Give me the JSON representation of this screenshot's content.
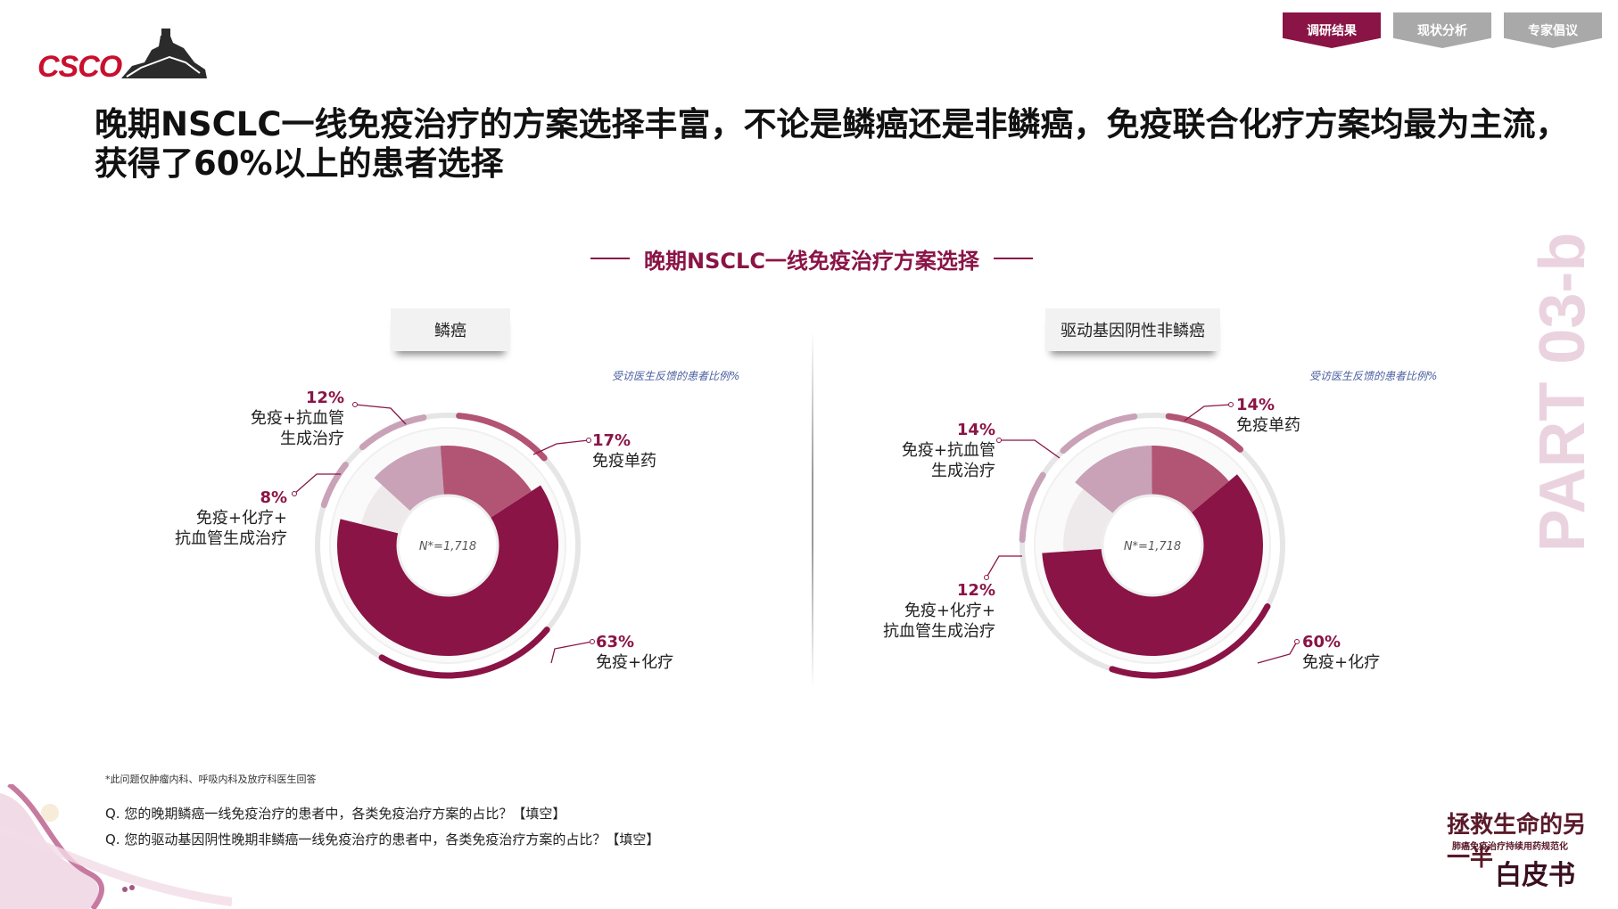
{
  "logo": {
    "text": "CSCO"
  },
  "tabs": [
    {
      "label": "调研结果",
      "active": true
    },
    {
      "label": "现状分析",
      "active": false
    },
    {
      "label": "专家倡议",
      "active": false
    }
  ],
  "title": "晚期NSCLC一线免疫治疗的方案选择丰富，不论是鳞癌还是非鳞癌，免疫联合化疗方案均最为主流，获得了60%以上的患者选择",
  "chart_section_title": "晚期NSCLC一线免疫治疗方案选择",
  "note": "受访医生反馈的患者比例%",
  "part_label": "PART 03-b",
  "colors": {
    "accent": "#8a1446",
    "seg2": "#b25473",
    "seg3": "#c9a2b8",
    "seg4": "#eeeaeb",
    "ring": "#e6e6e6"
  },
  "chart_data": [
    {
      "type": "pie",
      "title": "鳞癌",
      "n_label": "N*=1,718",
      "slices": [
        {
          "label_lines": [
            "免疫+化疗"
          ],
          "value": 63,
          "pct_text": "63%"
        },
        {
          "label_lines": [
            "免疫单药"
          ],
          "value": 17,
          "pct_text": "17%"
        },
        {
          "label_lines": [
            "免疫+抗血管",
            "生成治疗"
          ],
          "value": 12,
          "pct_text": "12%"
        },
        {
          "label_lines": [
            "免疫+化疗+",
            "抗血管生成治疗"
          ],
          "value": 8,
          "pct_text": "8%"
        }
      ]
    },
    {
      "type": "pie",
      "title": "驱动基因阴性非鳞癌",
      "n_label": "N*=1,718",
      "slices": [
        {
          "label_lines": [
            "免疫+化疗"
          ],
          "value": 60,
          "pct_text": "60%"
        },
        {
          "label_lines": [
            "免疫单药"
          ],
          "value": 14,
          "pct_text": "14%"
        },
        {
          "label_lines": [
            "免疫+抗血管",
            "生成治疗"
          ],
          "value": 14,
          "pct_text": "14%"
        },
        {
          "label_lines": [
            "免疫+化疗+",
            "抗血管生成治疗"
          ],
          "value": 12,
          "pct_text": "12%"
        }
      ]
    }
  ],
  "footnote": "*此问题仅肿瘤内科、呼吸内科及放疗科医生回答",
  "questions": [
    "Q. 您的晚期鳞癌一线免疫治疗的患者中，各类免疫治疗方案的占比？【填空】",
    "Q. 您的驱动基因阴性晚期非鳞癌一线免疫治疗的患者中，各类免疫治疗方案的占比？【填空】"
  ],
  "brand": {
    "line1": "拯救生命的另一半",
    "line2": "肺癌免疫治疗持续用药规范化",
    "line3": "白皮书"
  }
}
